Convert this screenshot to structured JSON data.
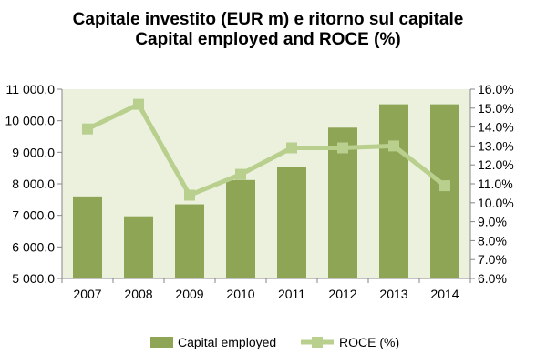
{
  "chart_data": {
    "type": "bar",
    "title": [
      "Capitale investito (EUR m) e ritorno sul capitale",
      "Capital employed and ROCE (%)"
    ],
    "categories": [
      "2007",
      "2008",
      "2009",
      "2010",
      "2011",
      "2012",
      "2013",
      "2014"
    ],
    "series": [
      {
        "name": "Capital employed",
        "type": "bar",
        "axis": "left",
        "color": "#8da554",
        "values": [
          7600,
          6970,
          7350,
          8120,
          8530,
          9780,
          10520,
          10520
        ]
      },
      {
        "name": "ROCE (%)",
        "type": "line",
        "axis": "right",
        "color": "#b9cf8d",
        "values": [
          13.9,
          15.2,
          10.4,
          11.5,
          12.9,
          12.9,
          13.0,
          10.9
        ]
      }
    ],
    "y_left": {
      "min": 5000,
      "max": 11000,
      "ticks": [
        "5 000.0",
        "6 000.0",
        "7 000.0",
        "8 000.0",
        "9 000.0",
        "10 000.0",
        "11 000.0"
      ]
    },
    "y_right": {
      "min": 6,
      "max": 16,
      "ticks": [
        "6.0%",
        "7.0%",
        "8.0%",
        "9.0%",
        "10.0%",
        "11.0%",
        "12.0%",
        "13.0%",
        "14.0%",
        "15.0%",
        "16.0%"
      ]
    },
    "plot_background": "#ebf1dd",
    "grid": false,
    "legend_position": "bottom"
  }
}
